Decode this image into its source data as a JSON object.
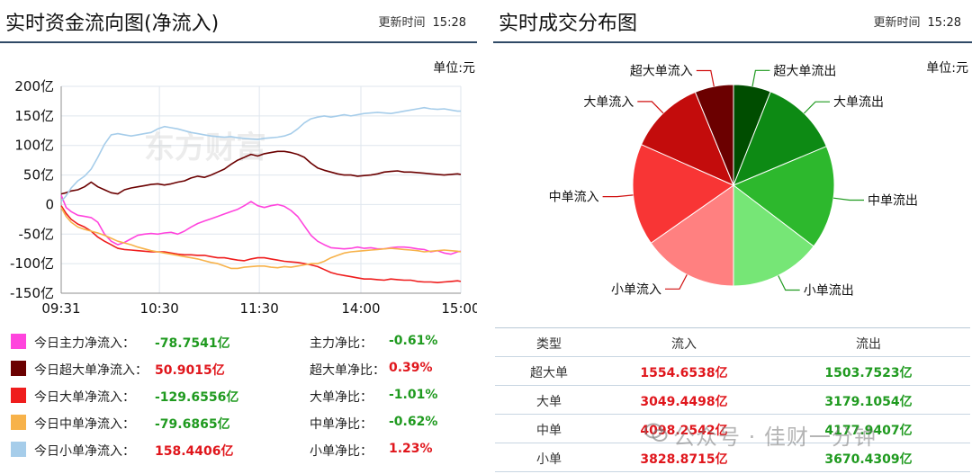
{
  "left_panel": {
    "title": "实时资金流向图(净流入)",
    "update_label": "更新时间",
    "update_time": "15:28",
    "unit": "单位:元",
    "watermark": "东方财富",
    "legend": [
      {
        "label": "今日主力净流入：",
        "value": "-78.7541亿",
        "ratio_label": "主力净比：",
        "ratio": "-0.61%",
        "color": "#ff44dd"
      },
      {
        "label": "今日超大单净流入：",
        "value": "50.9015亿",
        "ratio_label": "超大单净比：",
        "ratio": "0.39%",
        "color": "#6b0000"
      },
      {
        "label": "今日大单净流入：",
        "value": "-129.6556亿",
        "ratio_label": "大单净比：",
        "ratio": "-1.01%",
        "color": "#ef1d1d"
      },
      {
        "label": "今日中单净流入：",
        "value": "-79.6865亿",
        "ratio_label": "中单净比：",
        "ratio": "-0.62%",
        "color": "#f7b24a"
      },
      {
        "label": "今日小单净流入：",
        "value": "158.4406亿",
        "ratio_label": "小单净比：",
        "ratio": "1.23%",
        "color": "#a6cdea"
      }
    ]
  },
  "right_panel": {
    "title": "实时成交分布图",
    "update_label": "更新时间",
    "update_time": "15:28",
    "unit": "单位:元",
    "table": {
      "headers": [
        "类型",
        "流入",
        "流出"
      ],
      "rows": [
        {
          "type": "超大单",
          "inflow": "1554.6538亿",
          "outflow": "1503.7523亿"
        },
        {
          "type": "大单",
          "inflow": "3049.4498亿",
          "outflow": "3179.1054亿"
        },
        {
          "type": "中单",
          "inflow": "4098.2542亿",
          "outflow": "4177.9407亿"
        },
        {
          "type": "小单",
          "inflow": "3828.8715亿",
          "outflow": "3670.4309亿"
        }
      ]
    }
  },
  "watermark": "公众号 · 佳财一分钟",
  "chart_data": [
    {
      "type": "line",
      "title": "实时资金流向图(净流入)",
      "ylabel": "单位:元",
      "y_ticks": [
        "200亿",
        "150亿",
        "100亿",
        "50亿",
        "0",
        "-50亿",
        "-100亿",
        "-150亿"
      ],
      "y_tick_values": [
        200,
        150,
        100,
        50,
        0,
        -50,
        -100,
        -150
      ],
      "x_ticks": [
        "09:31",
        "10:30",
        "11:30",
        "14:00",
        "15:00"
      ],
      "ylim": [
        -150,
        200
      ],
      "x_domain_minutes": [
        0,
        240
      ],
      "x_tick_minutes": [
        0,
        59,
        119,
        180,
        240
      ],
      "grid": true,
      "series": [
        {
          "name": "主力",
          "color": "#ff44dd",
          "x": [
            0,
            3,
            6,
            10,
            14,
            18,
            22,
            26,
            30,
            34,
            38,
            42,
            46,
            50,
            54,
            58,
            62,
            66,
            70,
            74,
            78,
            82,
            86,
            90,
            94,
            98,
            102,
            106,
            110,
            114,
            118,
            122,
            126,
            130,
            134,
            138,
            142,
            146,
            150,
            154,
            158,
            162,
            166,
            170,
            174,
            178,
            182,
            186,
            190,
            194,
            198,
            202,
            206,
            210,
            214,
            218,
            222,
            226,
            230,
            234,
            238,
            240
          ],
          "y": [
            16,
            -5,
            -12,
            -18,
            -20,
            -22,
            -30,
            -50,
            -62,
            -68,
            -64,
            -58,
            -52,
            -50,
            -49,
            -50,
            -48,
            -47,
            -50,
            -45,
            -38,
            -32,
            -28,
            -24,
            -20,
            -16,
            -12,
            -8,
            -2,
            5,
            -2,
            -5,
            -2,
            0,
            -3,
            -10,
            -20,
            -36,
            -52,
            -62,
            -68,
            -73,
            -74,
            -75,
            -74,
            -72,
            -74,
            -73,
            -75,
            -75,
            -73,
            -72,
            -72,
            -73,
            -75,
            -76,
            -80,
            -78,
            -82,
            -84,
            -80,
            -79
          ]
        },
        {
          "name": "超大单",
          "color": "#6b0000",
          "x": [
            0,
            3,
            6,
            10,
            14,
            18,
            22,
            26,
            30,
            34,
            38,
            42,
            46,
            50,
            54,
            58,
            62,
            66,
            70,
            74,
            78,
            82,
            86,
            90,
            94,
            98,
            102,
            106,
            110,
            114,
            118,
            122,
            126,
            130,
            134,
            138,
            142,
            146,
            150,
            154,
            158,
            162,
            166,
            170,
            174,
            178,
            182,
            186,
            190,
            194,
            198,
            202,
            206,
            210,
            214,
            218,
            222,
            226,
            230,
            234,
            238,
            240
          ],
          "y": [
            18,
            20,
            23,
            25,
            30,
            38,
            30,
            25,
            20,
            18,
            25,
            28,
            30,
            32,
            34,
            35,
            33,
            35,
            38,
            40,
            45,
            48,
            46,
            50,
            55,
            60,
            68,
            75,
            80,
            85,
            82,
            86,
            88,
            90,
            90,
            88,
            85,
            80,
            70,
            62,
            58,
            55,
            52,
            50,
            50,
            48,
            49,
            50,
            52,
            55,
            56,
            57,
            55,
            55,
            54,
            53,
            52,
            51,
            50,
            51,
            52,
            51
          ]
        },
        {
          "name": "大单",
          "color": "#ef1d1d",
          "x": [
            0,
            3,
            6,
            10,
            14,
            18,
            22,
            26,
            30,
            34,
            38,
            42,
            46,
            50,
            54,
            58,
            62,
            66,
            70,
            74,
            78,
            82,
            86,
            90,
            94,
            98,
            102,
            106,
            110,
            114,
            118,
            122,
            126,
            130,
            134,
            138,
            142,
            146,
            150,
            154,
            158,
            162,
            166,
            170,
            174,
            178,
            182,
            186,
            190,
            194,
            198,
            202,
            206,
            210,
            214,
            218,
            222,
            226,
            230,
            234,
            238,
            240
          ],
          "y": [
            -2,
            -15,
            -25,
            -33,
            -38,
            -45,
            -55,
            -62,
            -68,
            -74,
            -76,
            -77,
            -78,
            -79,
            -80,
            -80,
            -80,
            -82,
            -84,
            -85,
            -85,
            -86,
            -86,
            -88,
            -90,
            -90,
            -92,
            -94,
            -95,
            -92,
            -90,
            -90,
            -92,
            -94,
            -96,
            -97,
            -98,
            -100,
            -102,
            -105,
            -110,
            -115,
            -118,
            -120,
            -122,
            -124,
            -126,
            -126,
            -127,
            -128,
            -126,
            -127,
            -128,
            -128,
            -130,
            -131,
            -131,
            -132,
            -131,
            -130,
            -129,
            -130
          ]
        },
        {
          "name": "中单",
          "color": "#f7b24a",
          "x": [
            0,
            3,
            6,
            10,
            14,
            18,
            22,
            26,
            30,
            34,
            38,
            42,
            46,
            50,
            54,
            58,
            62,
            66,
            70,
            74,
            78,
            82,
            86,
            90,
            94,
            98,
            102,
            106,
            110,
            114,
            118,
            122,
            126,
            130,
            134,
            138,
            142,
            146,
            150,
            154,
            158,
            162,
            166,
            170,
            174,
            178,
            182,
            186,
            190,
            194,
            198,
            202,
            206,
            210,
            214,
            218,
            222,
            226,
            230,
            234,
            238,
            240
          ],
          "y": [
            -5,
            -20,
            -30,
            -38,
            -42,
            -45,
            -48,
            -52,
            -57,
            -62,
            -65,
            -68,
            -72,
            -75,
            -78,
            -80,
            -82,
            -84,
            -86,
            -88,
            -90,
            -92,
            -95,
            -98,
            -100,
            -104,
            -108,
            -108,
            -106,
            -105,
            -104,
            -104,
            -106,
            -107,
            -105,
            -106,
            -104,
            -102,
            -100,
            -100,
            -96,
            -90,
            -86,
            -82,
            -80,
            -79,
            -78,
            -77,
            -76,
            -75,
            -74,
            -75,
            -76,
            -77,
            -78,
            -80,
            -79,
            -78,
            -77,
            -78,
            -79,
            -80
          ]
        },
        {
          "name": "小单",
          "color": "#a6cdea",
          "x": [
            0,
            3,
            6,
            10,
            14,
            18,
            22,
            26,
            30,
            34,
            38,
            42,
            46,
            50,
            54,
            58,
            62,
            66,
            70,
            74,
            78,
            82,
            86,
            90,
            94,
            98,
            102,
            106,
            110,
            114,
            118,
            122,
            126,
            130,
            134,
            138,
            142,
            146,
            150,
            154,
            158,
            162,
            166,
            170,
            174,
            178,
            182,
            186,
            190,
            194,
            198,
            202,
            206,
            210,
            214,
            218,
            222,
            226,
            230,
            234,
            238,
            240
          ],
          "y": [
            5,
            15,
            28,
            40,
            48,
            60,
            80,
            102,
            118,
            120,
            118,
            116,
            118,
            120,
            122,
            128,
            132,
            130,
            128,
            125,
            122,
            120,
            118,
            116,
            115,
            114,
            115,
            113,
            112,
            111,
            110,
            112,
            113,
            114,
            116,
            120,
            128,
            138,
            145,
            148,
            150,
            148,
            150,
            152,
            150,
            152,
            154,
            155,
            156,
            155,
            154,
            156,
            158,
            160,
            162,
            164,
            162,
            161,
            162,
            160,
            158,
            158
          ]
        }
      ]
    },
    {
      "type": "pie",
      "title": "实时成交分布图",
      "slices": [
        {
          "name": "超大单流出",
          "value": 1503.7523,
          "color": "#004d00"
        },
        {
          "name": "大单流出",
          "value": 3179.1054,
          "color": "#0d8a14"
        },
        {
          "name": "中单流出",
          "value": 4177.9407,
          "color": "#2db82d"
        },
        {
          "name": "小单流出",
          "value": 3670.4309,
          "color": "#76e676"
        },
        {
          "name": "小单流入",
          "value": 3828.8715,
          "color": "#ff8080"
        },
        {
          "name": "中单流入",
          "value": 4098.2542,
          "color": "#f83535"
        },
        {
          "name": "大单流入",
          "value": 3049.4498,
          "color": "#c30c0c"
        },
        {
          "name": "超大单流入",
          "value": 1554.6538,
          "color": "#6b0000"
        }
      ],
      "label_colors": {
        "in": "#d01010",
        "out": "#1f9a1f"
      }
    }
  ]
}
